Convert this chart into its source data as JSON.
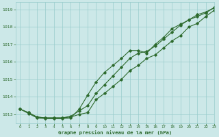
{
  "title": "Graphe pression niveau de la mer (hPa)",
  "background_color": "#cce8e8",
  "grid_color": "#99cccc",
  "line_color": "#2d6a2d",
  "xlim": [
    -0.5,
    23
  ],
  "ylim": [
    1012.5,
    1019.4
  ],
  "yticks": [
    1013,
    1014,
    1015,
    1016,
    1017,
    1018,
    1019
  ],
  "xticks": [
    0,
    1,
    2,
    3,
    4,
    5,
    6,
    7,
    8,
    9,
    10,
    11,
    12,
    13,
    14,
    15,
    16,
    17,
    18,
    19,
    20,
    21,
    22,
    23
  ],
  "series1_x": [
    0,
    1,
    2,
    3,
    4,
    5,
    6,
    7,
    8,
    9,
    10,
    11,
    12,
    13,
    14,
    15,
    16,
    17,
    18,
    19,
    20,
    21,
    22,
    23
  ],
  "series1": [
    1013.3,
    1013.1,
    1012.85,
    1012.8,
    1012.8,
    1012.8,
    1012.85,
    1013.0,
    1013.1,
    1013.85,
    1014.2,
    1014.6,
    1015.0,
    1015.5,
    1015.8,
    1016.2,
    1016.4,
    1016.8,
    1017.2,
    1017.5,
    1018.0,
    1018.2,
    1018.6,
    1018.95
  ],
  "series2_x": [
    0,
    1,
    2,
    3,
    4,
    5,
    6,
    7,
    8,
    9,
    10,
    11,
    12,
    13,
    14,
    15,
    16,
    17,
    18,
    19,
    20,
    21,
    22,
    23
  ],
  "series2": [
    1013.3,
    1013.1,
    1012.85,
    1012.8,
    1012.8,
    1012.8,
    1012.9,
    1013.2,
    1013.5,
    1014.2,
    1014.7,
    1015.2,
    1015.7,
    1016.2,
    1016.5,
    1016.6,
    1016.9,
    1017.3,
    1017.7,
    1018.1,
    1018.4,
    1018.6,
    1018.8,
    1019.1
  ],
  "series3_x": [
    0,
    1,
    2,
    3,
    4,
    5,
    6,
    7,
    8,
    9,
    10,
    11,
    12,
    13,
    14,
    15,
    16,
    17,
    18,
    19,
    20,
    21,
    22,
    23
  ],
  "series3": [
    1013.3,
    1013.05,
    1012.8,
    1012.75,
    1012.75,
    1012.75,
    1012.8,
    1013.3,
    1014.1,
    1014.85,
    1015.4,
    1015.8,
    1016.2,
    1016.65,
    1016.65,
    1016.5,
    1017.0,
    1017.4,
    1017.9,
    1018.15,
    1018.4,
    1018.7,
    1018.85,
    1019.1
  ]
}
